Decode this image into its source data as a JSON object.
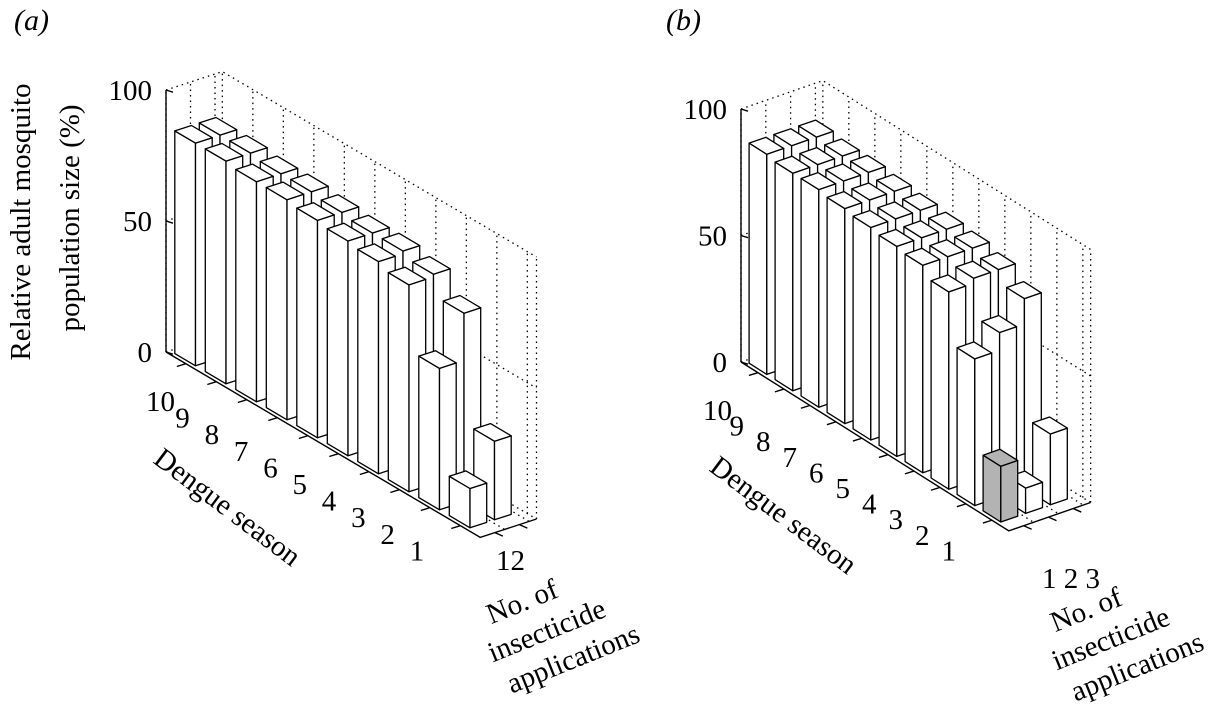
{
  "figure": {
    "ylabel_line1": "Relative adult mosquito",
    "ylabel_line2": "population size (%)"
  },
  "chart_data": [
    {
      "panel_label": "(a)",
      "type": "bar3d",
      "zlim": [
        0,
        100
      ],
      "zticks": [
        0,
        50,
        100
      ],
      "ylabel": "Dengue season",
      "ylabel_ticks": [
        "10",
        "9",
        "8",
        "7",
        "6",
        "5",
        "4",
        "3",
        "2",
        "1"
      ],
      "xlabel_lines": [
        "No. of",
        "insecticide",
        "applications"
      ],
      "xtick_text": "12",
      "applications": [
        1,
        2
      ],
      "seasons": [
        10,
        9,
        8,
        7,
        6,
        5,
        4,
        3,
        2,
        1
      ],
      "series": [
        {
          "values": [
            85,
            85,
            84,
            84,
            83,
            82,
            81,
            79,
            54,
            15
          ]
        },
        {
          "values": [
            85,
            85,
            84,
            84,
            83,
            82,
            82,
            80,
            72,
            30
          ]
        }
      ],
      "highlight": null,
      "grid": true
    },
    {
      "panel_label": "(b)",
      "type": "bar3d",
      "zlim": [
        0,
        100
      ],
      "zticks": [
        0,
        50,
        100
      ],
      "ylabel": "Dengue season",
      "ylabel_ticks": [
        "10",
        "9",
        "8",
        "7",
        "6",
        "5",
        "4",
        "3",
        "2",
        "1"
      ],
      "xlabel_lines": [
        "No. of",
        "insecticide",
        "applications"
      ],
      "xtick_text": "1 2 3",
      "applications": [
        1,
        2,
        3
      ],
      "seasons": [
        10,
        9,
        8,
        7,
        6,
        5,
        4,
        3,
        2,
        1
      ],
      "series": [
        {
          "values": [
            87,
            86,
            86,
            85,
            84,
            83,
            82,
            78,
            58,
            22
          ]
        },
        {
          "values": [
            87,
            86,
            86,
            85,
            84,
            83,
            82,
            80,
            65,
            10
          ]
        },
        {
          "values": [
            87,
            86,
            86,
            85,
            84,
            83,
            82,
            80,
            75,
            28
          ]
        }
      ],
      "highlight": {
        "application": 1,
        "season": 1,
        "color": "#b3b3b3"
      },
      "grid": true
    }
  ]
}
